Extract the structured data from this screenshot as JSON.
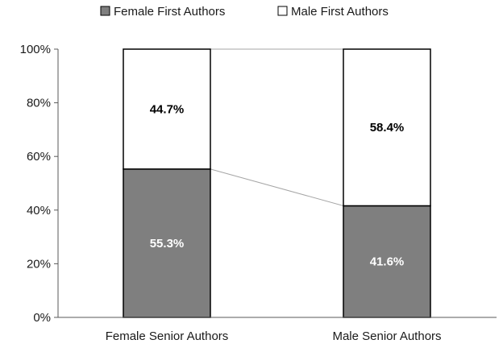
{
  "chart_data": {
    "type": "bar",
    "stacked": true,
    "percent_stacked": true,
    "categories": [
      "Female Senior Authors",
      "Male Senior Authors"
    ],
    "series": [
      {
        "name": "Female First Authors",
        "values": [
          55.3,
          41.6
        ],
        "labels": [
          "55.3%",
          "41.6%"
        ],
        "color": "#7f7f7f",
        "label_color": "#ffffff"
      },
      {
        "name": "Male First Authors",
        "values": [
          44.7,
          58.4
        ],
        "labels": [
          "44.7%",
          "58.4%"
        ],
        "color": "#ffffff",
        "label_color": "#000000"
      }
    ],
    "ylim": [
      0,
      100
    ],
    "y_ticks": [
      0,
      20,
      40,
      60,
      80,
      100
    ],
    "y_tick_labels": [
      "0%",
      "20%",
      "40%",
      "60%",
      "80%",
      "100%"
    ],
    "series_lines": true,
    "series_line_color": "#a6a6a6",
    "bar_edge_color": "#000000",
    "grid": false,
    "legend_position": "top-center"
  }
}
